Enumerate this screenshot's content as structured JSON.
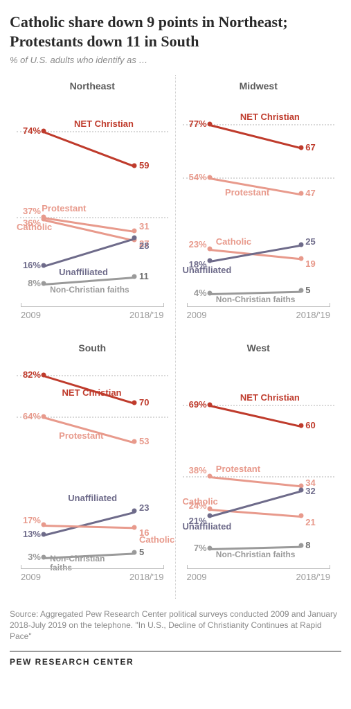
{
  "title": "Catholic share down 9 points in Northeast; Protestants down 11 in South",
  "subtitle": "% of U.S. adults who identify as …",
  "x_labels": [
    "2009",
    "2018/'19"
  ],
  "colors": {
    "net_christian": "#bf3b2c",
    "protestant": "#e89a8c",
    "catholic": "#e89a8c",
    "unaffiliated": "#6e6b8a",
    "non_christian": "#9a9a9a",
    "dotted": "#d9d9d9",
    "text_gray": "#8a8a8a",
    "text_dark": "#5a5a5a"
  },
  "line_width": 3,
  "marker_size": 7,
  "plot": {
    "x_left_pct": 18,
    "x_right_pct": 78,
    "y_min": 0,
    "y_max": 90
  },
  "panels": [
    {
      "name": "Northeast",
      "dotted_at": [
        74,
        37
      ],
      "series": [
        {
          "key": "net_christian",
          "label": "NET Christian",
          "color": "#bf3b2c",
          "start": 74,
          "end": 59,
          "start_txt": "74%",
          "end_txt": "59",
          "label_pos": "mid-top"
        },
        {
          "key": "protestant",
          "label": "Protestant",
          "color": "#e89a8c",
          "start": 37,
          "end": 31,
          "start_txt": "37%",
          "end_txt": "31",
          "label_pos": "left-upper",
          "start_label_dy": -8
        },
        {
          "key": "catholic",
          "label": "Catholic",
          "color": "#e89a8c",
          "start": 36,
          "end": 27,
          "start_txt": "36%",
          "end_txt": "27",
          "label_pos": "left-lower",
          "start_label_dy": 6
        },
        {
          "key": "unaffiliated",
          "label": "Unaffiliated",
          "color": "#6e6b8a",
          "start": 16,
          "end": 28,
          "start_txt": "16%",
          "end_txt": "28",
          "label_pos": "mid-bottom"
        },
        {
          "key": "non_christian",
          "label": "Non-Christian faiths",
          "color": "#9a9a9a",
          "start": 8,
          "end": 11,
          "start_txt": "8%",
          "end_txt": "11",
          "label_pos": "mid-bottom"
        }
      ]
    },
    {
      "name": "Midwest",
      "dotted_at": [
        77,
        54
      ],
      "series": [
        {
          "key": "net_christian",
          "label": "NET Christian",
          "color": "#bf3b2c",
          "start": 77,
          "end": 67,
          "start_txt": "77%",
          "end_txt": "67",
          "label_pos": "mid-top"
        },
        {
          "key": "protestant",
          "label": "Protestant",
          "color": "#e89a8c",
          "start": 54,
          "end": 47,
          "start_txt": "54%",
          "end_txt": "47",
          "label_pos": "mid-bottom"
        },
        {
          "key": "catholic",
          "label": "Catholic",
          "color": "#e89a8c",
          "start": 23,
          "end": 19,
          "start_txt": "23%",
          "end_txt": "19",
          "label_pos": "left-upper",
          "start_label_dy": -6
        },
        {
          "key": "unaffiliated",
          "label": "Unaffiliated",
          "color": "#6e6b8a",
          "start": 18,
          "end": 25,
          "start_txt": "18%",
          "end_txt": "25",
          "label_pos": "left-lower",
          "start_label_dy": 6
        },
        {
          "key": "non_christian",
          "label": "Non-Christian faiths",
          "color": "#9a9a9a",
          "start": 4,
          "end": 5,
          "start_txt": "4%",
          "end_txt": "5",
          "label_pos": "mid-bottom"
        }
      ]
    },
    {
      "name": "South",
      "dotted_at": [
        82,
        64
      ],
      "series": [
        {
          "key": "net_christian",
          "label": "NET Christian",
          "color": "#bf3b2c",
          "start": 82,
          "end": 70,
          "start_txt": "82%",
          "end_txt": "70",
          "label_pos": "mid-bottom"
        },
        {
          "key": "protestant",
          "label": "Protestant",
          "color": "#e89a8c",
          "start": 64,
          "end": 53,
          "start_txt": "64%",
          "end_txt": "53",
          "label_pos": "mid-bottom"
        },
        {
          "key": "unaffiliated",
          "label": "Unaffiliated",
          "color": "#6e6b8a",
          "start": 13,
          "end": 23,
          "start_txt": "13%",
          "end_txt": "23",
          "label_pos": "mid-top"
        },
        {
          "key": "catholic",
          "label": "Catholic",
          "color": "#e89a8c",
          "start": 17,
          "end": 16,
          "start_txt": "17%",
          "end_txt": "16",
          "label_pos": "right-lower",
          "start_label_dy": -6
        },
        {
          "key": "non_christian",
          "label": "Non-Christian faiths",
          "color": "#9a9a9a",
          "start": 3,
          "end": 5,
          "start_txt": "3%",
          "end_txt": "5",
          "label_pos": "mid-top",
          "nc_shift": true
        }
      ]
    },
    {
      "name": "West",
      "dotted_at": [
        69,
        38
      ],
      "series": [
        {
          "key": "net_christian",
          "label": "NET Christian",
          "color": "#bf3b2c",
          "start": 69,
          "end": 60,
          "start_txt": "69%",
          "end_txt": "60",
          "label_pos": "mid-top"
        },
        {
          "key": "protestant",
          "label": "Protestant",
          "color": "#e89a8c",
          "start": 38,
          "end": 34,
          "start_txt": "38%",
          "end_txt": "34",
          "label_pos": "left-upper",
          "start_label_dy": -8
        },
        {
          "key": "catholic",
          "label": "Catholic",
          "color": "#e89a8c",
          "start": 24,
          "end": 21,
          "start_txt": "24%",
          "end_txt": "21",
          "label_pos": "none",
          "start_label_dy": -4
        },
        {
          "key": "unaffiliated",
          "label": "Unaffiliated",
          "color": "#6e6b8a",
          "start": 21,
          "end": 32,
          "start_txt": "21%",
          "end_txt": "32",
          "label_pos": "left-lower",
          "start_label_dy": 8
        },
        {
          "key": "non_christian",
          "label": "Non-Christian faiths",
          "color": "#9a9a9a",
          "start": 7,
          "end": 8,
          "start_txt": "7%",
          "end_txt": "8",
          "label_pos": "mid-bottom"
        }
      ],
      "extra_catholic_label": true
    }
  ],
  "source": "Source: Aggregated Pew Research Center political surveys conducted 2009 and January 2018-July 2019 on the telephone. \"In U.S., Decline of Christianity Continues at Rapid Pace\"",
  "logo": "PEW RESEARCH CENTER"
}
